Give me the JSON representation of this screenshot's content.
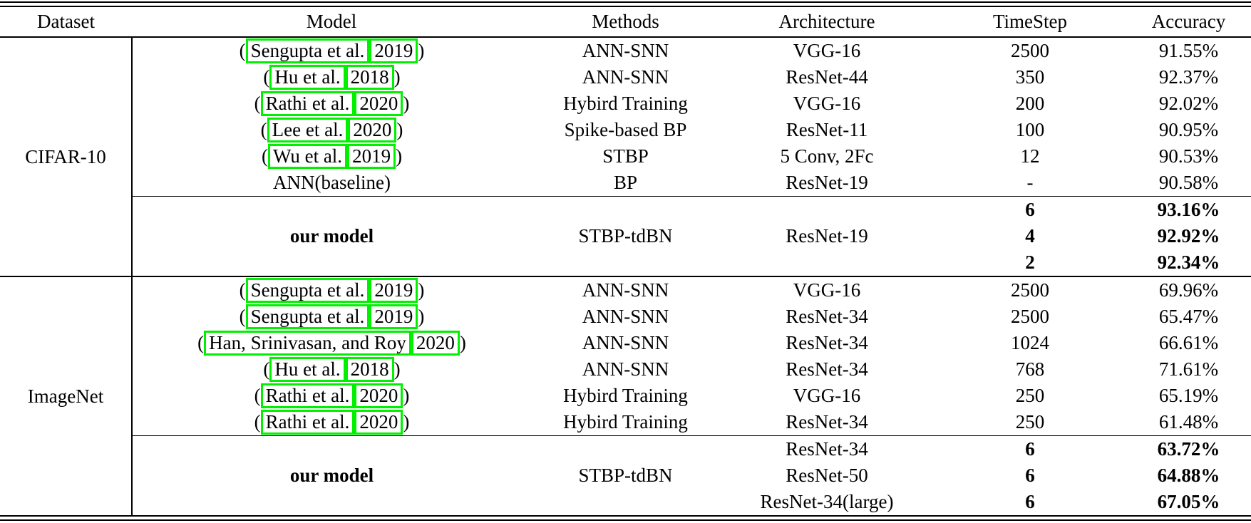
{
  "punct": {
    "open_paren": "(",
    "close_paren": ")"
  },
  "colors": {
    "citation_box": "#00f000"
  },
  "headers": {
    "dataset": "Dataset",
    "model": "Model",
    "methods": "Methods",
    "architecture": "Architecture",
    "timestep": "TimeStep",
    "accuracy": "Accuracy"
  },
  "cifar": {
    "label": "CIFAR-10",
    "rows": [
      {
        "author": "Sengupta et al.",
        "year": "2019",
        "methods": "ANN-SNN",
        "arch": "VGG-16",
        "timestep": "2500",
        "accuracy": "91.55%"
      },
      {
        "author": "Hu et al.",
        "year": "2018",
        "methods": "ANN-SNN",
        "arch": "ResNet-44",
        "timestep": "350",
        "accuracy": "92.37%"
      },
      {
        "author": "Rathi et al.",
        "year": "2020",
        "methods": "Hybird Training",
        "arch": "VGG-16",
        "timestep": "200",
        "accuracy": "92.02%"
      },
      {
        "author": "Lee et al.",
        "year": "2020",
        "methods": "Spike-based BP",
        "arch": "ResNet-11",
        "timestep": "100",
        "accuracy": "90.95%"
      },
      {
        "author": "Wu et al.",
        "year": "2019",
        "methods": "STBP",
        "arch": "5 Conv, 2Fc",
        "timestep": "12",
        "accuracy": "90.53%"
      },
      {
        "model_text": "ANN(baseline)",
        "methods": "BP",
        "arch": "ResNet-19",
        "timestep": "-",
        "accuracy": "90.58%"
      }
    ],
    "our_model": {
      "model": "our model",
      "methods": "STBP-tdBN",
      "arch": "ResNet-19",
      "rows": [
        {
          "timestep": "6",
          "accuracy": "93.16%"
        },
        {
          "timestep": "4",
          "accuracy": "92.92%"
        },
        {
          "timestep": "2",
          "accuracy": "92.34%"
        }
      ]
    }
  },
  "imagenet": {
    "label": "ImageNet",
    "rows": [
      {
        "author": "Sengupta et al.",
        "year": "2019",
        "methods": "ANN-SNN",
        "arch": "VGG-16",
        "timestep": "2500",
        "accuracy": "69.96%"
      },
      {
        "author": "Sengupta et al.",
        "year": "2019",
        "methods": "ANN-SNN",
        "arch": "ResNet-34",
        "timestep": "2500",
        "accuracy": "65.47%"
      },
      {
        "author": "Han, Srinivasan, and Roy",
        "year": "2020",
        "methods": "ANN-SNN",
        "arch": "ResNet-34",
        "timestep": "1024",
        "accuracy": "66.61%"
      },
      {
        "author": "Hu et al.",
        "year": "2018",
        "methods": "ANN-SNN",
        "arch": "ResNet-34",
        "timestep": "768",
        "accuracy": "71.61%"
      },
      {
        "author": "Rathi et al.",
        "year": "2020",
        "methods": "Hybird Training",
        "arch": "VGG-16",
        "timestep": "250",
        "accuracy": "65.19%"
      },
      {
        "author": "Rathi et al.",
        "year": "2020",
        "methods": "Hybird Training",
        "arch": "ResNet-34",
        "timestep": "250",
        "accuracy": "61.48%"
      }
    ],
    "our_model": {
      "model": "our model",
      "methods": "STBP-tdBN",
      "rows": [
        {
          "arch": "ResNet-34",
          "timestep": "6",
          "accuracy": "63.72%"
        },
        {
          "arch": "ResNet-50",
          "timestep": "6",
          "accuracy": "64.88%"
        },
        {
          "arch": "ResNet-34(large)",
          "timestep": "6",
          "accuracy": "67.05%"
        }
      ]
    }
  }
}
